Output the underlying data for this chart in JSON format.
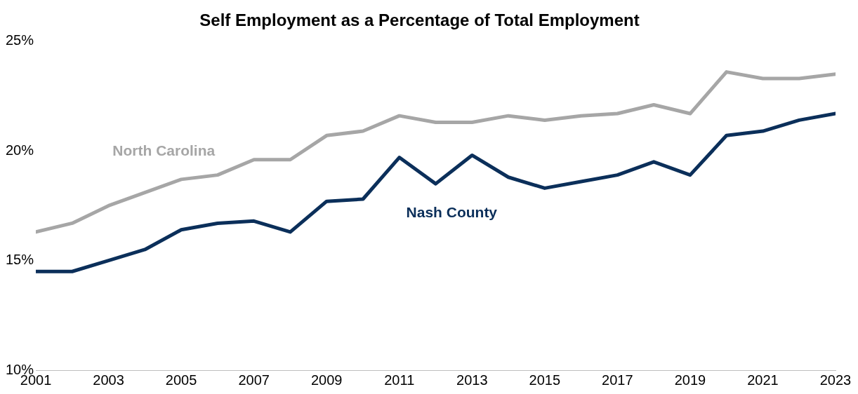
{
  "chart_data": {
    "type": "line",
    "title": "Self Employment as a Percentage of Total Employment",
    "x": [
      2001,
      2002,
      2003,
      2004,
      2005,
      2006,
      2007,
      2008,
      2009,
      2010,
      2011,
      2012,
      2013,
      2014,
      2015,
      2016,
      2017,
      2018,
      2019,
      2020,
      2021,
      2022,
      2023
    ],
    "series": [
      {
        "name": "North Carolina",
        "color": "#a6a6a6",
        "values": [
          16.3,
          16.7,
          17.5,
          18.1,
          18.7,
          18.9,
          19.6,
          19.6,
          20.7,
          20.9,
          21.6,
          21.3,
          21.3,
          21.6,
          21.4,
          21.6,
          21.7,
          22.1,
          21.7,
          23.6,
          23.3,
          23.3,
          23.5
        ]
      },
      {
        "name": "Nash County",
        "color": "#0b2f5a",
        "values": [
          14.5,
          14.5,
          15.0,
          15.5,
          16.4,
          16.7,
          16.8,
          16.3,
          17.7,
          17.8,
          19.7,
          18.5,
          19.8,
          18.8,
          18.3,
          18.6,
          18.9,
          19.5,
          18.9,
          20.7,
          20.9,
          21.4,
          21.7
        ]
      }
    ],
    "xlim": [
      2001,
      2023
    ],
    "xticks": [
      2001,
      2003,
      2005,
      2007,
      2009,
      2011,
      2013,
      2015,
      2017,
      2019,
      2021,
      2023
    ],
    "ylim": [
      10,
      25
    ],
    "yticks": [
      {
        "value": 10,
        "label": "10%"
      },
      {
        "value": 15,
        "label": "15%"
      },
      {
        "value": 20,
        "label": "20%"
      },
      {
        "value": 25,
        "label": "25%"
      }
    ],
    "grid": false,
    "legend": false,
    "marker": "none",
    "line_style": "solid"
  }
}
